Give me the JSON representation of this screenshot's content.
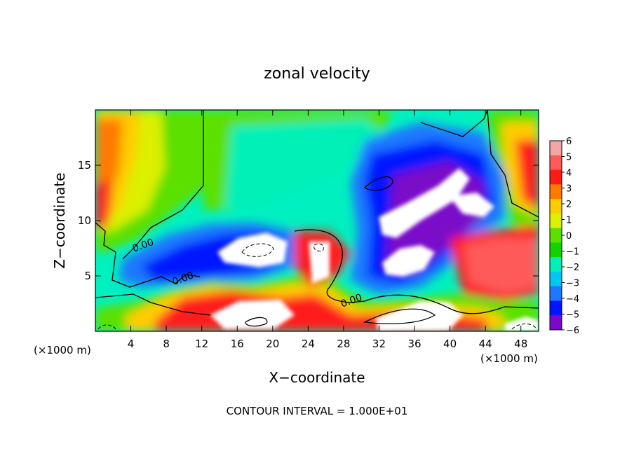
{
  "chart_data": {
    "type": "heatmap",
    "title": "zonal velocity",
    "xlabel": "X−coordinate",
    "ylabel": "Z−coordinate",
    "x_unit_left": "(×1000 m)",
    "x_unit_right": "(×1000 m)",
    "xlim": [
      0,
      50
    ],
    "ylim": [
      0,
      20
    ],
    "x_ticks": [
      4,
      8,
      12,
      16,
      20,
      24,
      28,
      32,
      36,
      40,
      44,
      48
    ],
    "y_ticks": [
      5,
      10,
      15
    ],
    "colorbar": {
      "levels": [
        6,
        5,
        4,
        3,
        2,
        1,
        0,
        -1,
        -2,
        -3,
        -4,
        -5,
        -6
      ],
      "labels": [
        "6",
        "5",
        "4",
        "3",
        "2",
        "1",
        "0",
        "−1",
        "−2",
        "−3",
        "−4",
        "−5",
        "−6"
      ],
      "colors": [
        "#f4a6a6",
        "#ff5a5a",
        "#ff1a1a",
        "#ff7a00",
        "#ffcc00",
        "#dcf000",
        "#5ce000",
        "#14d200",
        "#00f0b8",
        "#00c8f0",
        "#1e78ff",
        "#0014ff",
        "#7a0ac8"
      ]
    },
    "contour_labels": [
      {
        "text": "0.00",
        "x": 5.5,
        "y": 7.5
      },
      {
        "text": "0.00",
        "x": 10,
        "y": 4.5
      },
      {
        "text": "0.00",
        "x": 29,
        "y": 2.5
      }
    ],
    "footer": "CONTOUR INTERVAL = 1.000E+01"
  }
}
